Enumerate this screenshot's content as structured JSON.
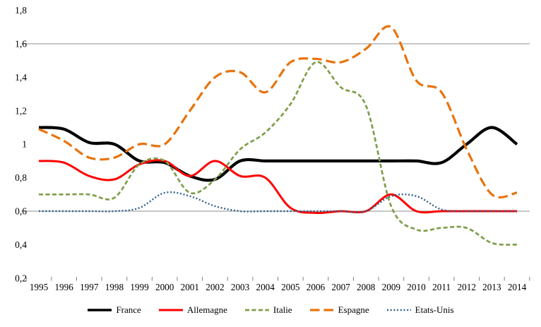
{
  "chart_data": {
    "type": "line",
    "title": "",
    "xlabel": "",
    "ylabel": "",
    "x": [
      "1995",
      "1996",
      "1997",
      "1998",
      "1999",
      "2000",
      "2001",
      "2002",
      "2003",
      "2004",
      "2005",
      "2006",
      "2007",
      "2008",
      "2009",
      "2010",
      "2011",
      "2012",
      "2013",
      "2014"
    ],
    "ylim": [
      0.2,
      1.8
    ],
    "yticks": [
      {
        "value": 1.8,
        "label": "1,8"
      },
      {
        "value": 1.6,
        "label": "1,6"
      },
      {
        "value": 1.4,
        "label": "1,4"
      },
      {
        "value": 1.2,
        "label": "1,2"
      },
      {
        "value": 1.0,
        "label": "1"
      },
      {
        "value": 0.8,
        "label": "0,8"
      },
      {
        "value": 0.6,
        "label": "0,6"
      },
      {
        "value": 0.4,
        "label": "0,4"
      },
      {
        "value": 0.2,
        "label": "0,2"
      }
    ],
    "gridline_values": [
      1.6,
      0.6
    ],
    "grid_color": "#8f8f8f",
    "tick_color": "#7f7f7f",
    "legend_position": "bottom",
    "line_smoothing": true,
    "series": [
      {
        "name": "France",
        "color": "#000000",
        "dash": "",
        "width": 4.2,
        "values": [
          1.1,
          1.09,
          1.01,
          1.0,
          0.9,
          0.89,
          0.81,
          0.79,
          0.9,
          0.9,
          0.9,
          0.9,
          0.9,
          0.9,
          0.9,
          0.9,
          0.89,
          1.0,
          1.1,
          1.0
        ]
      },
      {
        "name": "Allemagne",
        "color": "#fe0000",
        "dash": "",
        "width": 3.0,
        "values": [
          0.9,
          0.89,
          0.81,
          0.79,
          0.88,
          0.9,
          0.81,
          0.9,
          0.81,
          0.8,
          0.62,
          0.59,
          0.6,
          0.6,
          0.7,
          0.6,
          0.6,
          0.6,
          0.6,
          0.6
        ]
      },
      {
        "name": "Italie",
        "color": "#7e9e49",
        "dash": "6,3.5",
        "width": 2.7,
        "values": [
          0.7,
          0.7,
          0.7,
          0.68,
          0.88,
          0.9,
          0.71,
          0.79,
          0.97,
          1.07,
          1.24,
          1.49,
          1.34,
          1.23,
          0.63,
          0.49,
          0.5,
          0.5,
          0.41,
          0.4
        ]
      },
      {
        "name": "Espagne",
        "color": "#e8730c",
        "dash": "13.5,6",
        "width": 3.2,
        "values": [
          1.09,
          1.02,
          0.92,
          0.92,
          1.0,
          1.0,
          1.2,
          1.4,
          1.43,
          1.31,
          1.49,
          1.51,
          1.49,
          1.57,
          1.7,
          1.38,
          1.31,
          0.97,
          0.7,
          0.71
        ]
      },
      {
        "name": "Etats-Unis",
        "color": "#31618c",
        "dash": "2,2.7",
        "width": 2.4,
        "values": [
          0.6,
          0.6,
          0.6,
          0.6,
          0.62,
          0.71,
          0.69,
          0.63,
          0.6,
          0.6,
          0.6,
          0.6,
          0.6,
          0.6,
          0.69,
          0.69,
          0.61,
          0.6,
          0.6,
          0.6
        ]
      }
    ]
  }
}
